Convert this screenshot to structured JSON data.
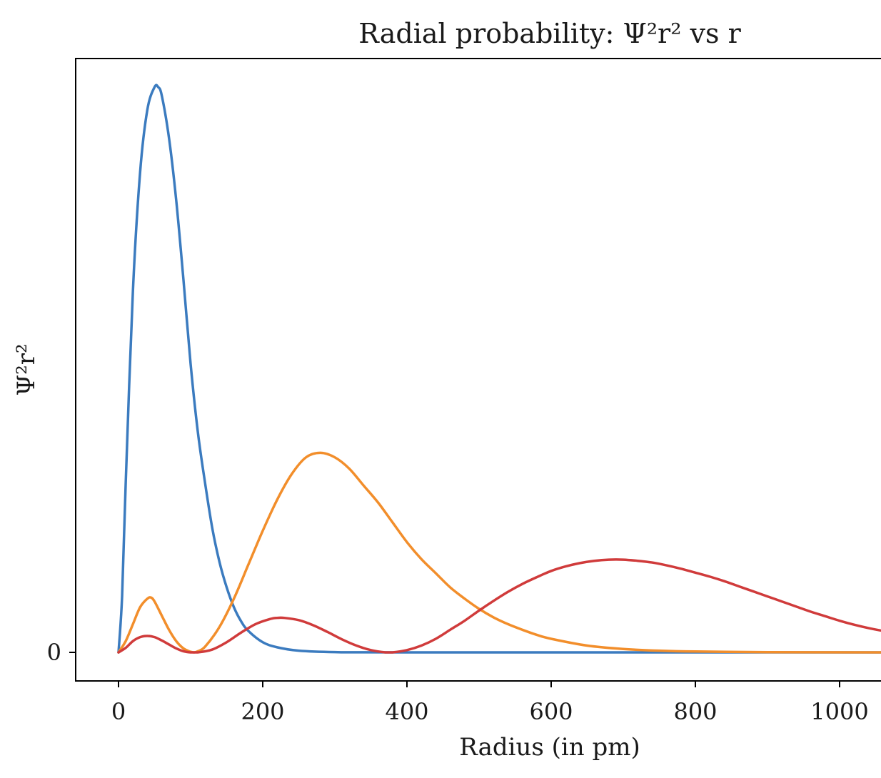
{
  "chart_data": {
    "type": "line",
    "title": "Radial probability: Ψ²r² vs r",
    "xlabel": "Radius (in pm)",
    "ylabel": "Ψ²r²",
    "xlim": [
      -60,
      1060
    ],
    "ylim": [
      -0.05,
      1.05
    ],
    "x_ticks": [
      0,
      200,
      400,
      600,
      800,
      1000
    ],
    "x_tick_labels": [
      "0",
      "200",
      "400",
      "600",
      "800",
      "1000"
    ],
    "y_ticks": [
      0
    ],
    "y_tick_labels": [
      "0"
    ],
    "grid": false,
    "series": [
      {
        "color": "#3b7bbf",
        "points": [
          [
            0,
            0
          ],
          [
            5,
            0.1
          ],
          [
            10,
            0.3
          ],
          [
            20,
            0.64
          ],
          [
            30,
            0.85
          ],
          [
            40,
            0.96
          ],
          [
            50,
            1.0
          ],
          [
            55,
            1.0
          ],
          [
            60,
            0.985
          ],
          [
            70,
            0.91
          ],
          [
            80,
            0.8
          ],
          [
            90,
            0.66
          ],
          [
            100,
            0.51
          ],
          [
            110,
            0.39
          ],
          [
            120,
            0.3
          ],
          [
            130,
            0.22
          ],
          [
            140,
            0.16
          ],
          [
            150,
            0.115
          ],
          [
            160,
            0.08
          ],
          [
            170,
            0.055
          ],
          [
            180,
            0.038
          ],
          [
            200,
            0.018
          ],
          [
            220,
            0.009
          ],
          [
            250,
            0.003
          ],
          [
            300,
            0.0005
          ],
          [
            400,
            0
          ],
          [
            1060,
            0
          ]
        ]
      },
      {
        "color": "#f28e2b",
        "points": [
          [
            0,
            0
          ],
          [
            10,
            0.02
          ],
          [
            20,
            0.05
          ],
          [
            30,
            0.08
          ],
          [
            40,
            0.095
          ],
          [
            45,
            0.097
          ],
          [
            50,
            0.09
          ],
          [
            60,
            0.065
          ],
          [
            70,
            0.04
          ],
          [
            80,
            0.02
          ],
          [
            90,
            0.007
          ],
          [
            100,
            0.001
          ],
          [
            105,
            0
          ],
          [
            110,
            0.002
          ],
          [
            120,
            0.01
          ],
          [
            140,
            0.045
          ],
          [
            160,
            0.095
          ],
          [
            180,
            0.155
          ],
          [
            200,
            0.215
          ],
          [
            220,
            0.27
          ],
          [
            240,
            0.315
          ],
          [
            260,
            0.345
          ],
          [
            280,
            0.353
          ],
          [
            300,
            0.345
          ],
          [
            320,
            0.325
          ],
          [
            340,
            0.295
          ],
          [
            360,
            0.265
          ],
          [
            380,
            0.23
          ],
          [
            400,
            0.195
          ],
          [
            420,
            0.165
          ],
          [
            440,
            0.14
          ],
          [
            460,
            0.115
          ],
          [
            480,
            0.095
          ],
          [
            500,
            0.077
          ],
          [
            520,
            0.062
          ],
          [
            540,
            0.05
          ],
          [
            560,
            0.04
          ],
          [
            580,
            0.031
          ],
          [
            600,
            0.024
          ],
          [
            650,
            0.012
          ],
          [
            700,
            0.006
          ],
          [
            750,
            0.003
          ],
          [
            800,
            0.0015
          ],
          [
            900,
            0.0003
          ],
          [
            1060,
            0
          ]
        ]
      },
      {
        "color": "#d03b3b",
        "points": [
          [
            0,
            0
          ],
          [
            10,
            0.008
          ],
          [
            20,
            0.02
          ],
          [
            30,
            0.027
          ],
          [
            40,
            0.029
          ],
          [
            50,
            0.027
          ],
          [
            60,
            0.021
          ],
          [
            70,
            0.014
          ],
          [
            80,
            0.007
          ],
          [
            90,
            0.002
          ],
          [
            100,
            0
          ],
          [
            110,
            0
          ],
          [
            130,
            0.005
          ],
          [
            150,
            0.018
          ],
          [
            170,
            0.035
          ],
          [
            190,
            0.05
          ],
          [
            210,
            0.059
          ],
          [
            220,
            0.061
          ],
          [
            230,
            0.061
          ],
          [
            250,
            0.057
          ],
          [
            270,
            0.048
          ],
          [
            290,
            0.036
          ],
          [
            310,
            0.023
          ],
          [
            330,
            0.012
          ],
          [
            350,
            0.004
          ],
          [
            370,
            0
          ],
          [
            380,
            0
          ],
          [
            400,
            0.004
          ],
          [
            420,
            0.012
          ],
          [
            440,
            0.024
          ],
          [
            460,
            0.04
          ],
          [
            480,
            0.056
          ],
          [
            500,
            0.074
          ],
          [
            520,
            0.091
          ],
          [
            540,
            0.107
          ],
          [
            560,
            0.121
          ],
          [
            580,
            0.133
          ],
          [
            600,
            0.144
          ],
          [
            620,
            0.152
          ],
          [
            640,
            0.158
          ],
          [
            660,
            0.162
          ],
          [
            680,
            0.164
          ],
          [
            700,
            0.164
          ],
          [
            720,
            0.162
          ],
          [
            740,
            0.159
          ],
          [
            760,
            0.154
          ],
          [
            780,
            0.148
          ],
          [
            800,
            0.141
          ],
          [
            820,
            0.134
          ],
          [
            840,
            0.126
          ],
          [
            860,
            0.117
          ],
          [
            880,
            0.108
          ],
          [
            900,
            0.099
          ],
          [
            920,
            0.09
          ],
          [
            940,
            0.081
          ],
          [
            960,
            0.072
          ],
          [
            980,
            0.064
          ],
          [
            1000,
            0.056
          ],
          [
            1020,
            0.049
          ],
          [
            1040,
            0.043
          ],
          [
            1060,
            0.038
          ]
        ]
      }
    ]
  }
}
